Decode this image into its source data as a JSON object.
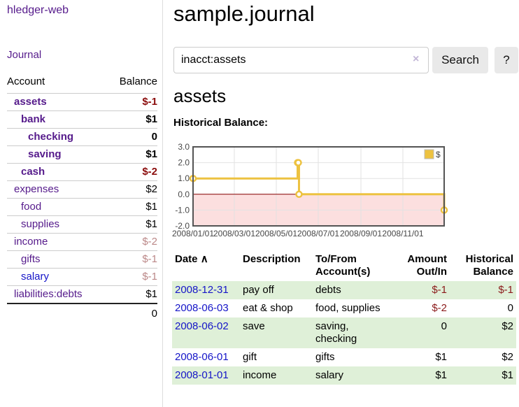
{
  "app": {
    "brand": "hledger-web"
  },
  "nav": {
    "journal": "Journal"
  },
  "sidebar": {
    "header": {
      "account": "Account",
      "balance": "Balance"
    },
    "accounts": [
      {
        "name": "assets",
        "balance": "$-1",
        "level": 1,
        "in_selected": true,
        "balance_color": "negative-strong"
      },
      {
        "name": "bank",
        "balance": "$1",
        "level": 2,
        "in_selected": true,
        "balance_color": "normal"
      },
      {
        "name": "checking",
        "balance": "0",
        "level": 3,
        "in_selected": true,
        "balance_color": "normal"
      },
      {
        "name": "saving",
        "balance": "$1",
        "level": 3,
        "in_selected": true,
        "balance_color": "normal"
      },
      {
        "name": "cash",
        "balance": "$-2",
        "level": 2,
        "in_selected": true,
        "balance_color": "negative-strong"
      },
      {
        "name": "expenses",
        "balance": "$2",
        "level": 1,
        "in_selected": false,
        "balance_color": "normal"
      },
      {
        "name": "food",
        "balance": "$1",
        "level": 2,
        "in_selected": false,
        "balance_color": "normal"
      },
      {
        "name": "supplies",
        "balance": "$1",
        "level": 2,
        "in_selected": false,
        "balance_color": "normal"
      },
      {
        "name": "income",
        "balance": "$-2",
        "level": 1,
        "in_selected": false,
        "balance_color": "negative-muted"
      },
      {
        "name": "gifts",
        "balance": "$-1",
        "level": 2,
        "in_selected": false,
        "balance_color": "negative-muted"
      },
      {
        "name": "salary",
        "balance": "$-1",
        "level": 2,
        "in_selected": false,
        "balance_color": "negative-muted",
        "link_style": "unvisited"
      },
      {
        "name": "liabilities:debts",
        "balance": "$1",
        "level": 1,
        "in_selected": false,
        "balance_color": "normal"
      }
    ],
    "total": "0"
  },
  "header": {
    "title": "sample.journal"
  },
  "search": {
    "query": "inacct:assets",
    "clear_icon": "×",
    "search_button": "Search",
    "help_button": "?"
  },
  "register": {
    "heading": "assets",
    "chart_title": "Historical Balance:",
    "table": {
      "headers": {
        "date": "Date",
        "sort_icon": "∧",
        "description": "Description",
        "accounts": "To/From Account(s)",
        "amount": "Amount Out/In",
        "balance": "Historical Balance"
      },
      "rows": [
        {
          "date": "2008-12-31",
          "description": "pay off",
          "accounts": "debts",
          "amount": "$-1",
          "balance": "$-1",
          "amount_negative": true,
          "balance_negative": true
        },
        {
          "date": "2008-06-03",
          "description": "eat & shop",
          "accounts": "food, supplies",
          "amount": "$-2",
          "balance": "0",
          "amount_negative": true,
          "balance_negative": false
        },
        {
          "date": "2008-06-02",
          "description": "save",
          "accounts": "saving, checking",
          "amount": "0",
          "balance": "$2",
          "amount_negative": false,
          "balance_negative": false
        },
        {
          "date": "2008-06-01",
          "description": "gift",
          "accounts": "gifts",
          "amount": "$1",
          "balance": "$2",
          "amount_negative": false,
          "balance_negative": false
        },
        {
          "date": "2008-01-01",
          "description": "income",
          "accounts": "salary",
          "amount": "$1",
          "balance": "$1",
          "amount_negative": false,
          "balance_negative": false
        }
      ]
    }
  },
  "chart_data": {
    "type": "line",
    "title": "Historical Balance:",
    "step": true,
    "series": [
      {
        "name": "$",
        "color": "#edc240",
        "points": [
          {
            "date": "2008-01-01",
            "value": 1
          },
          {
            "date": "2008-06-01",
            "value": 2
          },
          {
            "date": "2008-06-02",
            "value": 2
          },
          {
            "date": "2008-06-03",
            "value": 0
          },
          {
            "date": "2008-12-31",
            "value": -1
          }
        ]
      }
    ],
    "x_range": [
      "2008-01-01",
      "2008-12-31"
    ],
    "x_tick_labels": [
      "2008/01/01",
      "2008/03/01",
      "2008/05/01",
      "2008/07/01",
      "2008/09/01",
      "2008/11/01"
    ],
    "y_ticks": [
      "3.0",
      "2.0",
      "1.0",
      "0.0",
      "-1.0",
      "-2.0"
    ],
    "ylim": [
      -2,
      3
    ],
    "grid": true,
    "legend": {
      "label": "$",
      "position": "top-right"
    },
    "colors": {
      "negative_region": "#fcdfdf",
      "zero_line": "#8b0000",
      "gridline": "#e2e2e2",
      "border": "#545454",
      "tick_text": "#484848"
    }
  },
  "colors": {
    "link_purple": "#551a8b",
    "link_blue": "#1515c8",
    "negative_strong": "#8b0d0d",
    "negative_muted": "#bb8888",
    "row_green": "#dff0d8",
    "button_bg": "#e9e9e9"
  }
}
